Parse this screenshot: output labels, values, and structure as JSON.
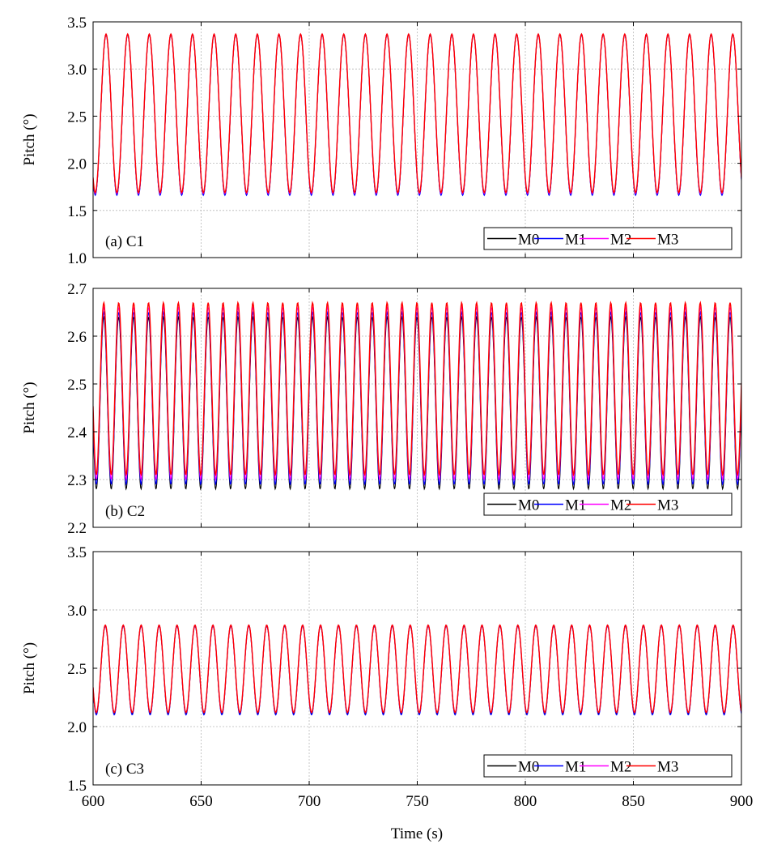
{
  "figure": {
    "xlabel": "Time (s)"
  },
  "chart_data": [
    {
      "type": "line",
      "panel_label": "(a) C1",
      "ylabel": "Pitch (°)",
      "xlim": [
        600,
        900
      ],
      "ylim": [
        1.0,
        3.5
      ],
      "x_ticks": [
        "600",
        "650",
        "700",
        "750",
        "800",
        "850",
        "900"
      ],
      "y_ticks": [
        "1.0",
        "1.5",
        "2.0",
        "2.5",
        "3.0",
        "3.5"
      ],
      "grid": true,
      "legend_position": "bottom-right",
      "signal": {
        "period_s": 10.0,
        "phase_start_s": 601.0
      },
      "series": [
        {
          "name": "M0",
          "color": "#000000",
          "min": 1.67,
          "max": 3.37
        },
        {
          "name": "M1",
          "color": "#0000ff",
          "min": 1.66,
          "max": 3.36
        },
        {
          "name": "M2",
          "color": "#ff00ff",
          "min": 1.68,
          "max": 3.37
        },
        {
          "name": "M3",
          "color": "#ff0000",
          "min": 1.69,
          "max": 3.37
        }
      ]
    },
    {
      "type": "line",
      "panel_label": "(b) C2",
      "ylabel": "Pitch (°)",
      "xlim": [
        600,
        900
      ],
      "ylim": [
        2.2,
        2.7
      ],
      "x_ticks": [
        "600",
        "650",
        "700",
        "750",
        "800",
        "850",
        "900"
      ],
      "y_ticks": [
        "2.2",
        "2.3",
        "2.4",
        "2.5",
        "2.6",
        "2.7"
      ],
      "grid": true,
      "legend_position": "bottom-right",
      "signal": {
        "period_s": 6.9,
        "phase_start_s": 601.5
      },
      "series": [
        {
          "name": "M0",
          "color": "#000000",
          "min": 2.28,
          "max": 2.64
        },
        {
          "name": "M1",
          "color": "#0000ff",
          "min": 2.29,
          "max": 2.65
        },
        {
          "name": "M2",
          "color": "#ff00ff",
          "min": 2.3,
          "max": 2.66
        },
        {
          "name": "M3",
          "color": "#ff0000",
          "min": 2.31,
          "max": 2.67
        }
      ]
    },
    {
      "type": "line",
      "panel_label": "(c) C3",
      "ylabel": "Pitch (°)",
      "xlim": [
        600,
        900
      ],
      "ylim": [
        1.5,
        3.5
      ],
      "x_ticks": [
        "600",
        "650",
        "700",
        "750",
        "800",
        "850",
        "900"
      ],
      "y_ticks": [
        "1.5",
        "2.0",
        "2.5",
        "3.0",
        "3.5"
      ],
      "grid": true,
      "legend_position": "bottom-right",
      "signal": {
        "period_s": 8.3,
        "phase_start_s": 601.5
      },
      "series": [
        {
          "name": "M0",
          "color": "#000000",
          "min": 2.11,
          "max": 2.87
        },
        {
          "name": "M1",
          "color": "#0000ff",
          "min": 2.1,
          "max": 2.86
        },
        {
          "name": "M2",
          "color": "#ff00ff",
          "min": 2.12,
          "max": 2.87
        },
        {
          "name": "M3",
          "color": "#ff0000",
          "min": 2.12,
          "max": 2.87
        }
      ]
    }
  ]
}
